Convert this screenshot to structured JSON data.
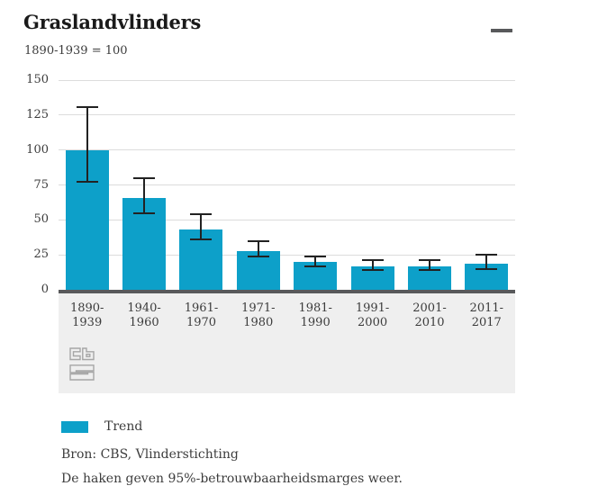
{
  "header": {
    "title": "Graslandvlinders",
    "subtitle": "1890-1939 = 100"
  },
  "menu": {
    "icon": "hamburger-menu-icon"
  },
  "chart_data": {
    "type": "bar",
    "title": "Graslandvlinders",
    "index_note": "1890-1939 = 100",
    "categories": [
      "1890-1939",
      "1940-1960",
      "1961-1970",
      "1971-1980",
      "1981-1990",
      "1991-2000",
      "2001-2010",
      "2011-2017"
    ],
    "series": [
      {
        "name": "Trend",
        "values": [
          100,
          66,
          43,
          28,
          20,
          17,
          17,
          19
        ],
        "ci95_low": [
          77,
          55,
          36,
          24,
          17,
          14,
          14,
          15
        ],
        "ci95_high": [
          131,
          80,
          54,
          35,
          24,
          21,
          21,
          25
        ]
      }
    ],
    "ylim": [
      0,
      150
    ],
    "yticks": [
      0,
      25,
      50,
      75,
      100,
      125,
      150
    ],
    "grid": true,
    "legend_position": "bottom-left",
    "bar_color": "#0da0c9",
    "error_bar_color": "#222222",
    "axis_color": "#58595b",
    "gridline_color": "#dcdcdc",
    "panel_color": "#efefef"
  },
  "legend": {
    "items": [
      {
        "label": "Trend",
        "color": "#0da0c9"
      }
    ]
  },
  "footer": {
    "source": "Bron: CBS, Vlinderstichting",
    "note": "De haken geven 95%-betrouwbaarheidsmarges weer."
  },
  "branding": {
    "logo": "cbs-logo"
  }
}
